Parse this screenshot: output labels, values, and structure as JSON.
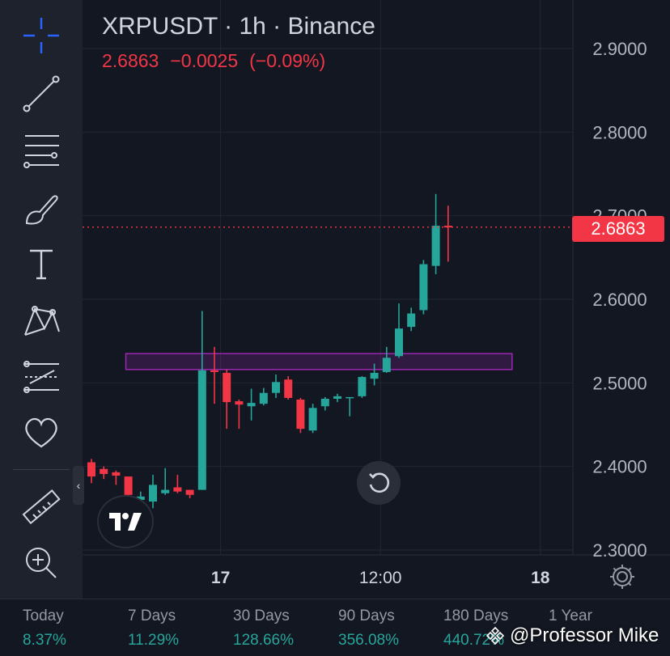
{
  "header": {
    "title": "XRPUSDT · 1h · Binance",
    "last_price": "2.6863",
    "change": "−0.0025",
    "change_pct": "(−0.09%)"
  },
  "price_badge": "2.6863",
  "colors": {
    "up": "#26a69a",
    "down": "#f23645",
    "zone": "#9c27b0",
    "background": "#131722"
  },
  "icons": [
    "crosshair-icon",
    "trend-line-icon",
    "fib-lines-icon",
    "brush-icon",
    "text-icon",
    "pattern-icon",
    "forecast-icon",
    "heart-icon",
    "ruler-icon",
    "zoom-in-icon"
  ],
  "chart_data": {
    "type": "candlestick",
    "symbol": "XRPUSDT",
    "interval": "1h",
    "exchange": "Binance",
    "ylim": [
      2.3,
      2.95
    ],
    "y_ticks": [
      "2.9000",
      "2.8000",
      "2.7000",
      "2.6000",
      "2.5000",
      "2.4000",
      "2.3000"
    ],
    "y_tick_values": [
      2.9,
      2.8,
      2.7,
      2.6,
      2.5,
      2.4,
      2.3
    ],
    "x_ticks": [
      {
        "label": "17",
        "index": 10.5
      },
      {
        "label": "12:00",
        "index": 23.5
      },
      {
        "label": "18",
        "index": 36.5
      }
    ],
    "x_index_range": [
      -0.5,
      44.5
    ],
    "current_price": 2.6863,
    "zone": {
      "from_index": 2.8,
      "to_index": 34.2,
      "low": 2.516,
      "high": 2.535
    },
    "candles": [
      {
        "o": 2.405,
        "h": 2.409,
        "l": 2.38,
        "c": 2.388
      },
      {
        "o": 2.397,
        "h": 2.4,
        "l": 2.385,
        "c": 2.391
      },
      {
        "o": 2.393,
        "h": 2.395,
        "l": 2.378,
        "c": 2.389
      },
      {
        "o": 2.388,
        "h": 2.388,
        "l": 2.362,
        "c": 2.366
      },
      {
        "o": 2.36,
        "h": 2.37,
        "l": 2.352,
        "c": 2.364
      },
      {
        "o": 2.358,
        "h": 2.39,
        "l": 2.35,
        "c": 2.378
      },
      {
        "o": 2.368,
        "h": 2.398,
        "l": 2.366,
        "c": 2.372
      },
      {
        "o": 2.375,
        "h": 2.39,
        "l": 2.368,
        "c": 2.37
      },
      {
        "o": 2.372,
        "h": 2.372,
        "l": 2.362,
        "c": 2.366
      },
      {
        "o": 2.372,
        "h": 2.586,
        "l": 2.372,
        "c": 2.515
      },
      {
        "o": 2.515,
        "h": 2.543,
        "l": 2.475,
        "c": 2.513
      },
      {
        "o": 2.512,
        "h": 2.516,
        "l": 2.445,
        "c": 2.477
      },
      {
        "o": 2.478,
        "h": 2.48,
        "l": 2.445,
        "c": 2.474
      },
      {
        "o": 2.472,
        "h": 2.493,
        "l": 2.455,
        "c": 2.476
      },
      {
        "o": 2.475,
        "h": 2.494,
        "l": 2.473,
        "c": 2.488
      },
      {
        "o": 2.488,
        "h": 2.51,
        "l": 2.482,
        "c": 2.501
      },
      {
        "o": 2.504,
        "h": 2.508,
        "l": 2.48,
        "c": 2.482
      },
      {
        "o": 2.48,
        "h": 2.482,
        "l": 2.44,
        "c": 2.445
      },
      {
        "o": 2.443,
        "h": 2.475,
        "l": 2.44,
        "c": 2.47
      },
      {
        "o": 2.472,
        "h": 2.483,
        "l": 2.467,
        "c": 2.481
      },
      {
        "o": 2.481,
        "h": 2.487,
        "l": 2.477,
        "c": 2.484
      },
      {
        "o": 2.483,
        "h": 2.483,
        "l": 2.46,
        "c": 2.483
      },
      {
        "o": 2.484,
        "h": 2.508,
        "l": 2.482,
        "c": 2.507
      },
      {
        "o": 2.505,
        "h": 2.523,
        "l": 2.497,
        "c": 2.512
      },
      {
        "o": 2.513,
        "h": 2.543,
        "l": 2.512,
        "c": 2.53
      },
      {
        "o": 2.532,
        "h": 2.595,
        "l": 2.53,
        "c": 2.565
      },
      {
        "o": 2.567,
        "h": 2.59,
        "l": 2.562,
        "c": 2.583
      },
      {
        "o": 2.587,
        "h": 2.647,
        "l": 2.582,
        "c": 2.642
      },
      {
        "o": 2.64,
        "h": 2.726,
        "l": 2.63,
        "c": 2.688
      },
      {
        "o": 2.688,
        "h": 2.712,
        "l": 2.645,
        "c": 2.686
      }
    ],
    "first_candle_index": 0
  },
  "performance": [
    {
      "label": "Today",
      "value": "8.37%"
    },
    {
      "label": "7 Days",
      "value": "11.29%"
    },
    {
      "label": "30 Days",
      "value": "128.66%"
    },
    {
      "label": "90 Days",
      "value": "356.08%"
    },
    {
      "label": "180 Days",
      "value": "440.72%"
    },
    {
      "label": "1 Year",
      "value": ""
    }
  ],
  "watermark": "@Professor Mike"
}
